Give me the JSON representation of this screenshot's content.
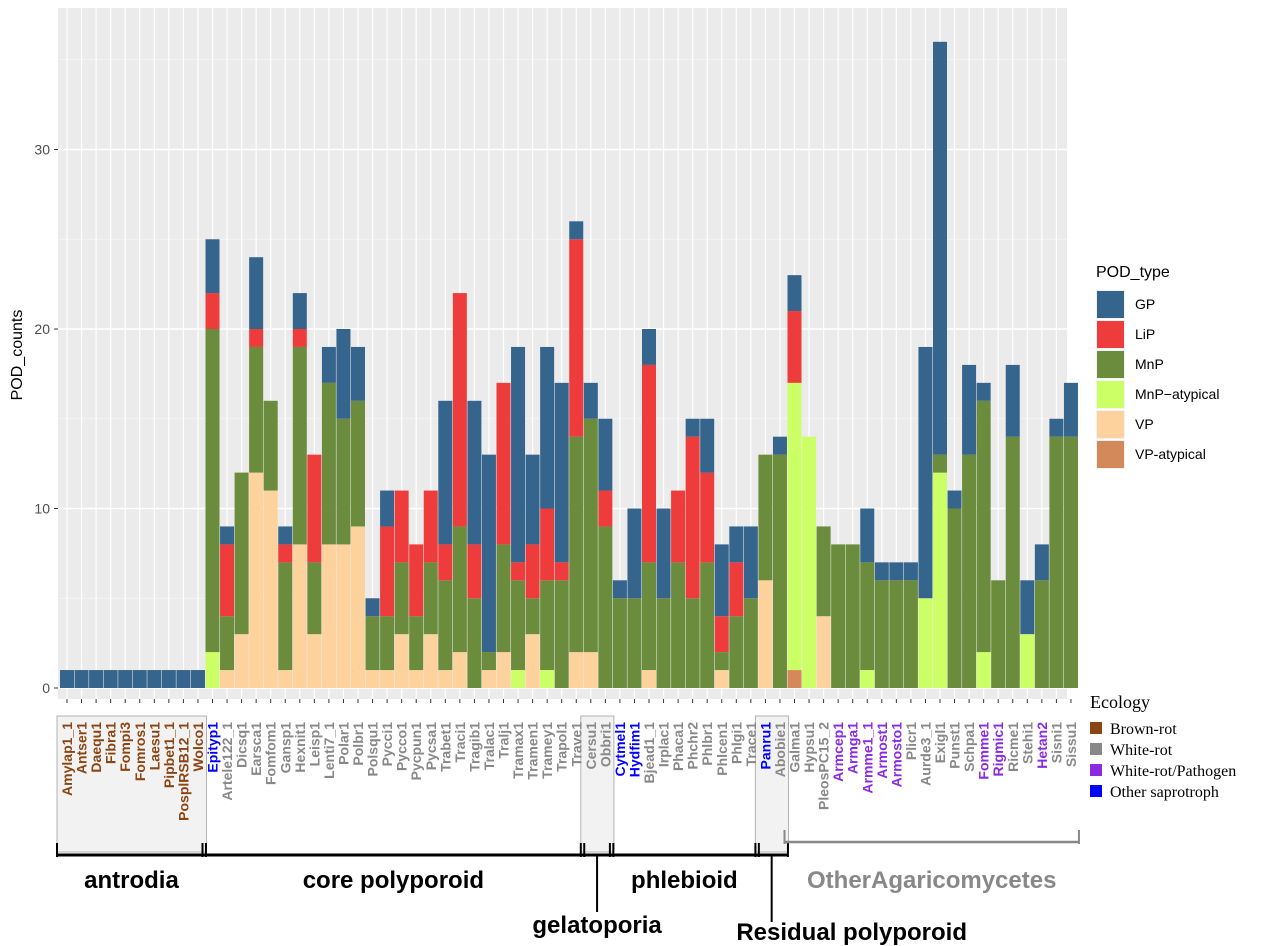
{
  "chart_data": {
    "type": "bar",
    "stacked": true,
    "ylabel": "POD_counts",
    "ylim": [
      0,
      36.5
    ],
    "yticks": [
      0,
      10,
      20,
      30
    ],
    "grid": true,
    "legend": {
      "title": "POD_type",
      "placement": "right",
      "entries": [
        {
          "name": "GP",
          "color": "#35648c"
        },
        {
          "name": "LiP",
          "color": "#ee3b3b"
        },
        {
          "name": "MnP",
          "color": "#6b8b3d"
        },
        {
          "name": "MnP−atypical",
          "color": "#ccff66"
        },
        {
          "name": "VP",
          "color": "#fdd29c"
        },
        {
          "name": "VP-atypical",
          "color": "#d4895a"
        }
      ]
    },
    "stack_order": [
      "VP-atypical",
      "VP",
      "MnP-atypical",
      "MnP",
      "LiP",
      "GP"
    ],
    "ecology_legend": {
      "title": "Ecology",
      "entries": [
        {
          "name": "Brown-rot",
          "color": "#8b4513"
        },
        {
          "name": "White-rot",
          "color": "#888888"
        },
        {
          "name": "White-rot/Pathogen",
          "color": "#8a2be2"
        },
        {
          "name": "Other saprotroph",
          "color": "#0000ff"
        }
      ]
    },
    "species": [
      {
        "name": "Amylap1_1",
        "eco": 0,
        "v": [
          0,
          0,
          0,
          0,
          0,
          1
        ]
      },
      {
        "name": "Antser1",
        "eco": 0,
        "v": [
          0,
          0,
          0,
          0,
          0,
          1
        ]
      },
      {
        "name": "Daequ1",
        "eco": 0,
        "v": [
          0,
          0,
          0,
          0,
          0,
          1
        ]
      },
      {
        "name": "Fibra1",
        "eco": 0,
        "v": [
          0,
          0,
          0,
          0,
          0,
          1
        ]
      },
      {
        "name": "Fompi3",
        "eco": 0,
        "v": [
          0,
          0,
          0,
          0,
          0,
          1
        ]
      },
      {
        "name": "Fomros1",
        "eco": 0,
        "v": [
          0,
          0,
          0,
          0,
          0,
          1
        ]
      },
      {
        "name": "Laesu1",
        "eco": 0,
        "v": [
          0,
          0,
          0,
          0,
          0,
          1
        ]
      },
      {
        "name": "Pipbet1_1",
        "eco": 0,
        "v": [
          0,
          0,
          0,
          0,
          0,
          1
        ]
      },
      {
        "name": "PosplRSB12_1",
        "eco": 0,
        "v": [
          0,
          0,
          0,
          0,
          0,
          1
        ]
      },
      {
        "name": "Wolco1",
        "eco": 0,
        "v": [
          0,
          0,
          0,
          0,
          0,
          1
        ]
      },
      {
        "name": "Epityp1",
        "eco": 3,
        "v": [
          0,
          0,
          2,
          18,
          2,
          3
        ]
      },
      {
        "name": "Artele122_1",
        "eco": 1,
        "v": [
          0,
          1,
          0,
          3,
          4,
          1
        ]
      },
      {
        "name": "Dicsq1",
        "eco": 1,
        "v": [
          0,
          3,
          0,
          9,
          0,
          0
        ]
      },
      {
        "name": "Earsca1",
        "eco": 1,
        "v": [
          0,
          12,
          0,
          7,
          1,
          4
        ]
      },
      {
        "name": "Fomfom1",
        "eco": 1,
        "v": [
          0,
          11,
          0,
          5,
          0,
          0
        ]
      },
      {
        "name": "Gansp1",
        "eco": 1,
        "v": [
          0,
          1,
          0,
          6,
          1,
          1
        ]
      },
      {
        "name": "Hexnit1",
        "eco": 1,
        "v": [
          0,
          8,
          0,
          11,
          1,
          2
        ]
      },
      {
        "name": "Leisp1",
        "eco": 1,
        "v": [
          0,
          3,
          0,
          4,
          6,
          0
        ]
      },
      {
        "name": "Lenti7_1",
        "eco": 1,
        "v": [
          0,
          8,
          0,
          9,
          0,
          2
        ]
      },
      {
        "name": "Polar1",
        "eco": 1,
        "v": [
          0,
          8,
          0,
          7,
          0,
          5
        ]
      },
      {
        "name": "Polbr1",
        "eco": 1,
        "v": [
          0,
          9,
          0,
          7,
          0,
          3
        ]
      },
      {
        "name": "Polsqu1",
        "eco": 1,
        "v": [
          0,
          1,
          0,
          3,
          0,
          1
        ]
      },
      {
        "name": "Pycci1",
        "eco": 1,
        "v": [
          0,
          1,
          0,
          3,
          5,
          2
        ]
      },
      {
        "name": "Pycco1",
        "eco": 1,
        "v": [
          0,
          3,
          0,
          4,
          4,
          0
        ]
      },
      {
        "name": "Pycpun1",
        "eco": 1,
        "v": [
          0,
          1,
          0,
          3,
          4,
          0
        ]
      },
      {
        "name": "Pycsa1",
        "eco": 1,
        "v": [
          0,
          3,
          0,
          4,
          4,
          0
        ]
      },
      {
        "name": "Trabet1",
        "eco": 1,
        "v": [
          0,
          1,
          0,
          5,
          2,
          8
        ]
      },
      {
        "name": "Traci1",
        "eco": 1,
        "v": [
          0,
          2,
          0,
          7,
          13,
          0
        ]
      },
      {
        "name": "Tragib1",
        "eco": 1,
        "v": [
          0,
          0,
          0,
          5,
          3,
          8
        ]
      },
      {
        "name": "Tralac1",
        "eco": 1,
        "v": [
          0,
          1,
          0,
          1,
          0,
          11
        ]
      },
      {
        "name": "Tralj1",
        "eco": 1,
        "v": [
          0,
          2,
          0,
          6,
          9,
          0
        ]
      },
      {
        "name": "Tramax1",
        "eco": 1,
        "v": [
          0,
          0,
          1,
          5,
          1,
          12
        ]
      },
      {
        "name": "Tramen1",
        "eco": 1,
        "v": [
          0,
          3,
          0,
          2,
          3,
          5
        ]
      },
      {
        "name": "Tramey1",
        "eco": 1,
        "v": [
          0,
          0,
          1,
          5,
          4,
          9
        ]
      },
      {
        "name": "Trapol1",
        "eco": 1,
        "v": [
          0,
          0,
          0,
          6,
          1,
          10
        ]
      },
      {
        "name": "Trave1",
        "eco": 1,
        "v": [
          0,
          2,
          0,
          12,
          11,
          1
        ]
      },
      {
        "name": "Cersu1",
        "eco": 1,
        "v": [
          0,
          2,
          0,
          13,
          0,
          2
        ]
      },
      {
        "name": "Obbri1",
        "eco": 1,
        "v": [
          0,
          0,
          0,
          9,
          2,
          4
        ]
      },
      {
        "name": "Cytmel1",
        "eco": 3,
        "v": [
          0,
          0,
          0,
          5,
          0,
          1
        ]
      },
      {
        "name": "Hydfim1",
        "eco": 3,
        "v": [
          0,
          0,
          0,
          5,
          0,
          5
        ]
      },
      {
        "name": "Bjead1_1",
        "eco": 1,
        "v": [
          0,
          1,
          0,
          6,
          11,
          2
        ]
      },
      {
        "name": "Irplac1",
        "eco": 1,
        "v": [
          0,
          0,
          0,
          5,
          0,
          5
        ]
      },
      {
        "name": "Phaca1",
        "eco": 1,
        "v": [
          0,
          0,
          0,
          7,
          4,
          0
        ]
      },
      {
        "name": "Phchr2",
        "eco": 1,
        "v": [
          0,
          0,
          0,
          5,
          9,
          1
        ]
      },
      {
        "name": "Phlbr1",
        "eco": 1,
        "v": [
          0,
          0,
          0,
          7,
          5,
          3
        ]
      },
      {
        "name": "Phlcen1",
        "eco": 1,
        "v": [
          0,
          1,
          0,
          1,
          2,
          4
        ]
      },
      {
        "name": "Phlgi1",
        "eco": 1,
        "v": [
          0,
          0,
          0,
          4,
          3,
          2
        ]
      },
      {
        "name": "Trace1",
        "eco": 1,
        "v": [
          0,
          0,
          0,
          5,
          0,
          4
        ]
      },
      {
        "name": "Panru1",
        "eco": 3,
        "v": [
          0,
          6,
          0,
          7,
          0,
          0
        ]
      },
      {
        "name": "Abobie1",
        "eco": 1,
        "v": [
          0,
          0,
          0,
          13,
          0,
          1
        ]
      },
      {
        "name": "Galma1",
        "eco": 1,
        "v": [
          1,
          0,
          16,
          0,
          4,
          2
        ]
      },
      {
        "name": "Hypsu1",
        "eco": 1,
        "v": [
          0,
          0,
          14,
          0,
          0,
          0
        ]
      },
      {
        "name": "PleosPC15_2",
        "eco": 1,
        "v": [
          0,
          4,
          0,
          5,
          0,
          0
        ]
      },
      {
        "name": "Armcep1",
        "eco": 2,
        "v": [
          0,
          0,
          0,
          8,
          0,
          0
        ]
      },
      {
        "name": "Armga1",
        "eco": 2,
        "v": [
          0,
          0,
          0,
          8,
          0,
          0
        ]
      },
      {
        "name": "Armme1_1",
        "eco": 2,
        "v": [
          0,
          0,
          1,
          6,
          0,
          3
        ]
      },
      {
        "name": "Armost1",
        "eco": 2,
        "v": [
          0,
          0,
          0,
          6,
          0,
          1
        ]
      },
      {
        "name": "Armosto1",
        "eco": 2,
        "v": [
          0,
          0,
          0,
          6,
          0,
          1
        ]
      },
      {
        "name": "Plicr1",
        "eco": 1,
        "v": [
          0,
          0,
          0,
          6,
          0,
          1
        ]
      },
      {
        "name": "Aurde3_1",
        "eco": 1,
        "v": [
          0,
          0,
          5,
          0,
          0,
          14
        ]
      },
      {
        "name": "Exigl1",
        "eco": 1,
        "v": [
          0,
          0,
          12,
          1,
          0,
          23
        ]
      },
      {
        "name": "Punst1",
        "eco": 1,
        "v": [
          0,
          0,
          0,
          10,
          0,
          1
        ]
      },
      {
        "name": "Schpa1",
        "eco": 1,
        "v": [
          0,
          0,
          0,
          13,
          0,
          5
        ]
      },
      {
        "name": "Fomme1",
        "eco": 2,
        "v": [
          0,
          0,
          2,
          14,
          0,
          1
        ]
      },
      {
        "name": "Rigmic1",
        "eco": 2,
        "v": [
          0,
          0,
          0,
          6,
          0,
          0
        ]
      },
      {
        "name": "Ricme1",
        "eco": 1,
        "v": [
          0,
          0,
          0,
          14,
          0,
          4
        ]
      },
      {
        "name": "Stehi1",
        "eco": 1,
        "v": [
          0,
          0,
          3,
          0,
          0,
          3
        ]
      },
      {
        "name": "Hetan2",
        "eco": 2,
        "v": [
          0,
          0,
          0,
          6,
          0,
          2
        ]
      },
      {
        "name": "Sisni1",
        "eco": 1,
        "v": [
          0,
          0,
          0,
          14,
          0,
          1
        ]
      },
      {
        "name": "Sissu1",
        "eco": 1,
        "v": [
          0,
          0,
          0,
          14,
          0,
          3
        ]
      }
    ],
    "groups": [
      {
        "name": "antrodia",
        "start": 0,
        "end": 9,
        "shaded": true,
        "color": "#000000",
        "label_pos": "above"
      },
      {
        "name": "core polyporoid",
        "start": 10,
        "end": 35,
        "shaded": false,
        "color": "#000000",
        "label_pos": "above"
      },
      {
        "name": "gelatoporia",
        "start": 36,
        "end": 37,
        "shaded": true,
        "color": "#000000",
        "label_pos": "below"
      },
      {
        "name": "phlebioid",
        "start": 38,
        "end": 47,
        "shaded": false,
        "color": "#000000",
        "label_pos": "above"
      },
      {
        "name": "Residual polyporoid",
        "start": 48,
        "end": 49,
        "shaded": true,
        "color": "#000000",
        "label_pos": "below"
      },
      {
        "name": "OtherAgaricomycetes",
        "start": 50,
        "end": 69,
        "shaded": false,
        "color": "#888888",
        "label_pos": "above"
      }
    ]
  }
}
